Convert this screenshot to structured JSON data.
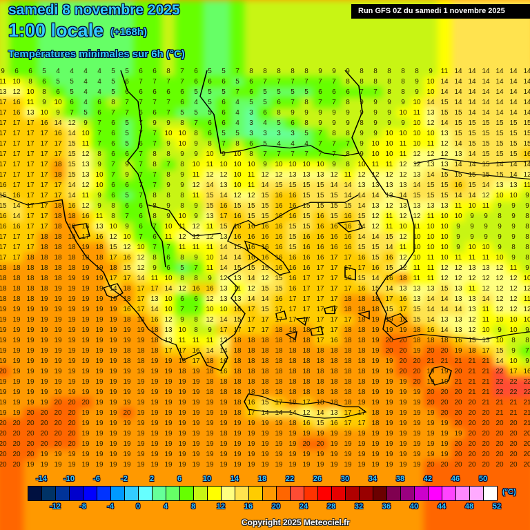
{
  "header": {
    "date": "samedi 8 novembre 2025",
    "time": "1:00 locale",
    "lead": "(+168h)",
    "parameter": "Températures minimales sur 6h (°C)",
    "run": "Run GFS 0Z du samedi 1 novembre 2025"
  },
  "legend": {
    "unit": "(°C)",
    "top_labels": [
      "-14",
      "-10",
      "-6",
      "-2",
      "2",
      "6",
      "10",
      "14",
      "18",
      "22",
      "26",
      "30",
      "34",
      "38",
      "42",
      "46",
      "50"
    ],
    "bottom_labels": [
      "-12",
      "-8",
      "-4",
      "0",
      "4",
      "8",
      "12",
      "16",
      "20",
      "24",
      "28",
      "32",
      "36",
      "40",
      "44",
      "48",
      "52"
    ],
    "colors": [
      "#001040",
      "#003366",
      "#003399",
      "#0000cc",
      "#0000ff",
      "#0033ff",
      "#0099ff",
      "#33ccff",
      "#66ffff",
      "#66ff99",
      "#66ff66",
      "#66ff00",
      "#c8f514",
      "#ffff00",
      "#ffff80",
      "#ffe34f",
      "#ffcc00",
      "#ff9900",
      "#ff6600",
      "#ff4c33",
      "#ff3300",
      "#ff0000",
      "#e60000",
      "#b00000",
      "#990000",
      "#6b0000",
      "#800050",
      "#990080",
      "#cc00cc",
      "#ff00ff",
      "#ff44ff",
      "#ff88ff",
      "#ffaaff",
      "#ffffff"
    ]
  },
  "copyright": "Copyright 2025 Meteociel.fr",
  "grid": {
    "rows": [
      [
        9,
        6,
        6,
        5,
        4,
        4,
        4,
        4,
        5,
        5,
        6,
        6,
        8,
        7,
        6,
        5,
        5,
        7,
        8,
        8,
        8,
        8,
        8,
        9,
        9,
        9,
        8,
        8,
        8,
        8,
        8,
        9,
        11,
        14,
        14,
        14,
        14,
        14,
        14
      ],
      [
        11,
        10,
        8,
        6,
        5,
        5,
        4,
        4,
        5,
        6,
        7,
        7,
        7,
        7,
        6,
        6,
        6,
        5,
        6,
        7,
        7,
        7,
        7,
        7,
        7,
        8,
        8,
        8,
        8,
        8,
        9,
        10,
        14,
        14,
        14,
        14,
        14,
        14,
        14
      ],
      [
        13,
        12,
        10,
        8,
        6,
        5,
        4,
        4,
        5,
        6,
        6,
        6,
        6,
        6,
        5,
        5,
        5,
        7,
        6,
        5,
        5,
        5,
        5,
        6,
        6,
        6,
        7,
        7,
        8,
        8,
        9,
        10,
        14,
        14,
        14,
        14,
        14,
        14,
        14
      ],
      [
        17,
        16,
        11,
        9,
        10,
        6,
        4,
        6,
        8,
        7,
        7,
        7,
        7,
        6,
        4,
        5,
        6,
        4,
        5,
        5,
        6,
        7,
        8,
        7,
        7,
        8,
        9,
        9,
        9,
        9,
        10,
        14,
        15,
        14,
        14,
        14,
        14,
        14,
        14
      ],
      [
        17,
        16,
        13,
        10,
        9,
        7,
        5,
        6,
        7,
        7,
        6,
        6,
        7,
        5,
        5,
        5,
        6,
        4,
        3,
        6,
        8,
        9,
        9,
        9,
        9,
        9,
        9,
        9,
        9,
        10,
        11,
        13,
        15,
        15,
        14,
        14,
        14,
        14,
        14
      ],
      [
        17,
        17,
        17,
        16,
        14,
        12,
        9,
        7,
        6,
        5,
        7,
        9,
        9,
        8,
        7,
        6,
        6,
        4,
        3,
        4,
        5,
        6,
        8,
        9,
        9,
        9,
        8,
        9,
        9,
        9,
        10,
        12,
        14,
        15,
        15,
        15,
        15,
        15,
        15
      ],
      [
        17,
        17,
        17,
        17,
        16,
        14,
        10,
        7,
        6,
        5,
        7,
        7,
        10,
        10,
        8,
        6,
        5,
        5,
        3,
        3,
        3,
        3,
        5,
        7,
        8,
        8,
        9,
        9,
        10,
        10,
        10,
        10,
        13,
        15,
        15,
        15,
        15,
        15,
        15
      ],
      [
        17,
        17,
        17,
        17,
        17,
        15,
        11,
        7,
        6,
        5,
        6,
        7,
        9,
        10,
        9,
        8,
        7,
        8,
        6,
        5,
        4,
        4,
        4,
        7,
        7,
        7,
        9,
        10,
        10,
        11,
        10,
        11,
        12,
        14,
        15,
        15,
        15,
        15,
        15
      ],
      [
        17,
        17,
        17,
        17,
        17,
        15,
        12,
        8,
        6,
        6,
        7,
        8,
        8,
        9,
        9,
        10,
        9,
        10,
        8,
        7,
        7,
        7,
        7,
        7,
        7,
        8,
        9,
        10,
        10,
        11,
        12,
        12,
        12,
        13,
        14,
        15,
        15,
        15,
        16
      ],
      [
        17,
        17,
        17,
        17,
        18,
        15,
        13,
        9,
        7,
        9,
        7,
        8,
        7,
        8,
        10,
        11,
        10,
        10,
        10,
        9,
        10,
        10,
        10,
        10,
        9,
        8,
        10,
        11,
        11,
        12,
        12,
        13,
        13,
        14,
        14,
        15,
        14,
        14,
        14
      ],
      [
        17,
        17,
        17,
        17,
        18,
        15,
        13,
        10,
        7,
        9,
        7,
        7,
        8,
        9,
        11,
        12,
        12,
        10,
        11,
        12,
        12,
        13,
        13,
        13,
        12,
        11,
        12,
        12,
        12,
        12,
        13,
        14,
        15,
        15,
        15,
        15,
        15,
        14,
        12
      ],
      [
        16,
        17,
        17,
        17,
        17,
        14,
        12,
        10,
        6,
        6,
        7,
        7,
        9,
        9,
        12,
        14,
        13,
        10,
        11,
        14,
        15,
        15,
        15,
        15,
        14,
        14,
        13,
        13,
        13,
        13,
        14,
        15,
        15,
        16,
        15,
        14,
        13,
        13,
        11
      ],
      [
        15,
        16,
        17,
        17,
        17,
        14,
        11,
        9,
        6,
        5,
        7,
        8,
        8,
        8,
        11,
        15,
        14,
        12,
        12,
        15,
        16,
        16,
        15,
        15,
        15,
        14,
        14,
        14,
        13,
        14,
        15,
        15,
        15,
        14,
        14,
        12,
        10,
        10,
        9
      ],
      [
        15,
        14,
        17,
        17,
        18,
        16,
        12,
        9,
        8,
        6,
        6,
        8,
        9,
        8,
        9,
        15,
        16,
        15,
        15,
        15,
        16,
        16,
        15,
        15,
        15,
        15,
        14,
        13,
        12,
        13,
        13,
        13,
        13,
        11,
        10,
        11,
        9,
        9,
        9
      ],
      [
        16,
        14,
        17,
        17,
        18,
        18,
        16,
        11,
        8,
        7,
        6,
        8,
        9,
        10,
        9,
        13,
        17,
        16,
        15,
        15,
        16,
        16,
        15,
        16,
        15,
        16,
        15,
        12,
        11,
        12,
        12,
        11,
        10,
        10,
        9,
        9,
        8,
        9,
        8
      ],
      [
        16,
        16,
        17,
        17,
        18,
        18,
        16,
        13,
        10,
        9,
        6,
        7,
        10,
        11,
        12,
        11,
        15,
        16,
        16,
        16,
        16,
        15,
        15,
        16,
        16,
        16,
        14,
        12,
        11,
        10,
        11,
        10,
        10,
        9,
        9,
        9,
        9,
        9,
        8
      ],
      [
        17,
        17,
        17,
        18,
        18,
        18,
        17,
        16,
        12,
        10,
        7,
        6,
        11,
        12,
        12,
        12,
        13,
        16,
        16,
        16,
        16,
        15,
        16,
        16,
        16,
        16,
        14,
        14,
        15,
        12,
        10,
        10,
        10,
        9,
        9,
        9,
        9,
        9,
        8
      ],
      [
        17,
        17,
        17,
        18,
        18,
        18,
        19,
        18,
        15,
        12,
        10,
        7,
        7,
        11,
        11,
        11,
        14,
        15,
        16,
        16,
        16,
        15,
        16,
        16,
        16,
        16,
        15,
        15,
        14,
        11,
        10,
        10,
        10,
        9,
        10,
        10,
        9,
        8,
        8
      ],
      [
        17,
        17,
        18,
        18,
        18,
        18,
        18,
        18,
        17,
        16,
        12,
        8,
        6,
        8,
        9,
        10,
        14,
        14,
        16,
        16,
        16,
        16,
        16,
        16,
        17,
        17,
        16,
        15,
        16,
        12,
        10,
        11,
        10,
        11,
        11,
        11,
        10,
        9,
        8
      ],
      [
        18,
        18,
        18,
        18,
        18,
        18,
        19,
        19,
        18,
        15,
        12,
        9,
        6,
        5,
        7,
        11,
        14,
        15,
        15,
        15,
        16,
        16,
        16,
        17,
        17,
        17,
        17,
        16,
        15,
        12,
        11,
        11,
        12,
        12,
        13,
        13,
        12,
        11,
        9
      ],
      [
        18,
        18,
        18,
        18,
        18,
        19,
        19,
        19,
        17,
        17,
        14,
        11,
        10,
        8,
        8,
        9,
        12,
        13,
        14,
        12,
        15,
        16,
        17,
        17,
        17,
        16,
        15,
        14,
        16,
        18,
        11,
        11,
        12,
        12,
        12,
        12,
        12,
        12,
        10
      ],
      [
        18,
        18,
        18,
        18,
        19,
        19,
        19,
        19,
        14,
        18,
        17,
        17,
        14,
        12,
        16,
        16,
        13,
        11,
        12,
        15,
        15,
        16,
        17,
        17,
        17,
        17,
        16,
        15,
        14,
        13,
        13,
        13,
        15,
        13,
        11,
        12,
        12,
        12,
        12
      ],
      [
        18,
        18,
        18,
        19,
        19,
        19,
        19,
        19,
        19,
        18,
        17,
        13,
        10,
        6,
        6,
        12,
        13,
        13,
        14,
        14,
        16,
        17,
        17,
        17,
        17,
        18,
        18,
        18,
        17,
        16,
        13,
        14,
        14,
        13,
        13,
        14,
        12,
        12,
        11
      ],
      [
        19,
        19,
        19,
        19,
        19,
        19,
        19,
        19,
        19,
        16,
        17,
        14,
        10,
        7,
        7,
        10,
        10,
        16,
        17,
        15,
        17,
        17,
        17,
        17,
        17,
        18,
        18,
        18,
        15,
        17,
        15,
        14,
        14,
        14,
        13,
        11,
        12,
        12,
        12
      ],
      [
        19,
        19,
        19,
        19,
        19,
        19,
        19,
        19,
        19,
        18,
        18,
        16,
        12,
        9,
        8,
        12,
        14,
        15,
        17,
        17,
        17,
        17,
        17,
        17,
        17,
        17,
        18,
        19,
        19,
        18,
        15,
        14,
        13,
        13,
        12,
        11,
        10,
        10,
        10
      ],
      [
        19,
        19,
        19,
        19,
        19,
        19,
        19,
        19,
        19,
        19,
        19,
        18,
        13,
        10,
        8,
        9,
        17,
        17,
        17,
        17,
        18,
        18,
        18,
        17,
        17,
        18,
        18,
        19,
        19,
        19,
        18,
        16,
        14,
        13,
        12,
        10,
        9,
        10,
        9
      ],
      [
        19,
        19,
        19,
        19,
        19,
        19,
        19,
        19,
        19,
        19,
        19,
        18,
        13,
        11,
        11,
        11,
        12,
        18,
        18,
        18,
        18,
        18,
        18,
        17,
        16,
        18,
        18,
        19,
        20,
        20,
        18,
        18,
        18,
        16,
        15,
        13,
        10,
        8,
        8
      ],
      [
        19,
        19,
        19,
        19,
        19,
        19,
        19,
        19,
        19,
        18,
        18,
        18,
        17,
        17,
        16,
        14,
        14,
        18,
        18,
        18,
        18,
        18,
        18,
        18,
        18,
        18,
        18,
        19,
        20,
        20,
        19,
        20,
        20,
        19,
        18,
        17,
        15,
        9,
        7
      ],
      [
        19,
        19,
        19,
        19,
        19,
        19,
        19,
        19,
        19,
        18,
        18,
        19,
        19,
        18,
        17,
        18,
        16,
        18,
        18,
        18,
        18,
        18,
        18,
        18,
        18,
        18,
        18,
        19,
        19,
        20,
        20,
        21,
        21,
        21,
        21,
        21,
        14,
        10,
        9
      ],
      [
        20,
        19,
        19,
        19,
        19,
        19,
        19,
        19,
        19,
        19,
        19,
        19,
        19,
        18,
        19,
        18,
        16,
        18,
        18,
        18,
        18,
        18,
        18,
        18,
        18,
        18,
        18,
        19,
        19,
        20,
        20,
        19,
        19,
        20,
        21,
        21,
        22,
        17,
        16
      ],
      [
        19,
        19,
        19,
        19,
        19,
        19,
        19,
        19,
        19,
        19,
        19,
        19,
        19,
        19,
        19,
        18,
        18,
        18,
        18,
        18,
        18,
        18,
        18,
        18,
        18,
        18,
        18,
        19,
        19,
        19,
        20,
        19,
        19,
        21,
        21,
        21,
        22,
        22,
        22
      ],
      [
        19,
        19,
        19,
        19,
        19,
        19,
        19,
        19,
        19,
        19,
        19,
        19,
        19,
        19,
        19,
        18,
        18,
        18,
        18,
        18,
        18,
        18,
        18,
        18,
        18,
        18,
        18,
        19,
        19,
        19,
        19,
        20,
        20,
        20,
        21,
        21,
        22,
        22,
        22
      ],
      [
        19,
        19,
        19,
        19,
        20,
        20,
        20,
        19,
        19,
        19,
        19,
        19,
        19,
        19,
        19,
        19,
        19,
        18,
        16,
        15,
        17,
        18,
        17,
        18,
        18,
        18,
        19,
        19,
        19,
        19,
        19,
        20,
        20,
        20,
        20,
        21,
        21,
        21,
        21
      ],
      [
        19,
        19,
        20,
        20,
        20,
        20,
        19,
        19,
        19,
        20,
        19,
        19,
        19,
        19,
        19,
        19,
        19,
        18,
        17,
        14,
        14,
        14,
        12,
        14,
        13,
        17,
        17,
        18,
        19,
        19,
        19,
        19,
        20,
        20,
        20,
        20,
        21,
        21,
        21
      ],
      [
        20,
        20,
        20,
        20,
        20,
        20,
        19,
        19,
        19,
        19,
        19,
        19,
        19,
        19,
        19,
        19,
        19,
        19,
        19,
        19,
        19,
        18,
        16,
        15,
        16,
        17,
        17,
        18,
        19,
        19,
        19,
        19,
        19,
        20,
        20,
        20,
        20,
        20,
        21
      ],
      [
        20,
        20,
        20,
        20,
        20,
        20,
        19,
        19,
        19,
        19,
        19,
        19,
        19,
        19,
        19,
        19,
        18,
        19,
        19,
        19,
        19,
        19,
        19,
        19,
        19,
        19,
        19,
        19,
        19,
        19,
        19,
        19,
        19,
        19,
        20,
        20,
        20,
        20,
        20
      ],
      [
        20,
        20,
        20,
        20,
        20,
        20,
        19,
        19,
        19,
        19,
        19,
        19,
        19,
        19,
        19,
        19,
        19,
        19,
        19,
        19,
        19,
        19,
        20,
        20,
        19,
        19,
        19,
        19,
        19,
        19,
        19,
        19,
        19,
        20,
        20,
        20,
        20,
        20,
        20
      ],
      [
        20,
        20,
        20,
        19,
        19,
        19,
        19,
        19,
        19,
        19,
        19,
        19,
        19,
        19,
        19,
        19,
        19,
        19,
        19,
        19,
        19,
        19,
        19,
        19,
        19,
        19,
        19,
        19,
        19,
        19,
        19,
        19,
        19,
        20,
        20,
        20,
        20,
        20,
        20
      ],
      [
        20,
        20,
        19,
        19,
        19,
        19,
        19,
        19,
        19,
        19,
        19,
        19,
        19,
        19,
        19,
        19,
        19,
        19,
        19,
        19,
        19,
        19,
        19,
        19,
        19,
        19,
        19,
        19,
        19,
        19,
        19,
        20,
        20,
        20,
        20,
        20,
        20,
        20,
        20
      ]
    ]
  }
}
